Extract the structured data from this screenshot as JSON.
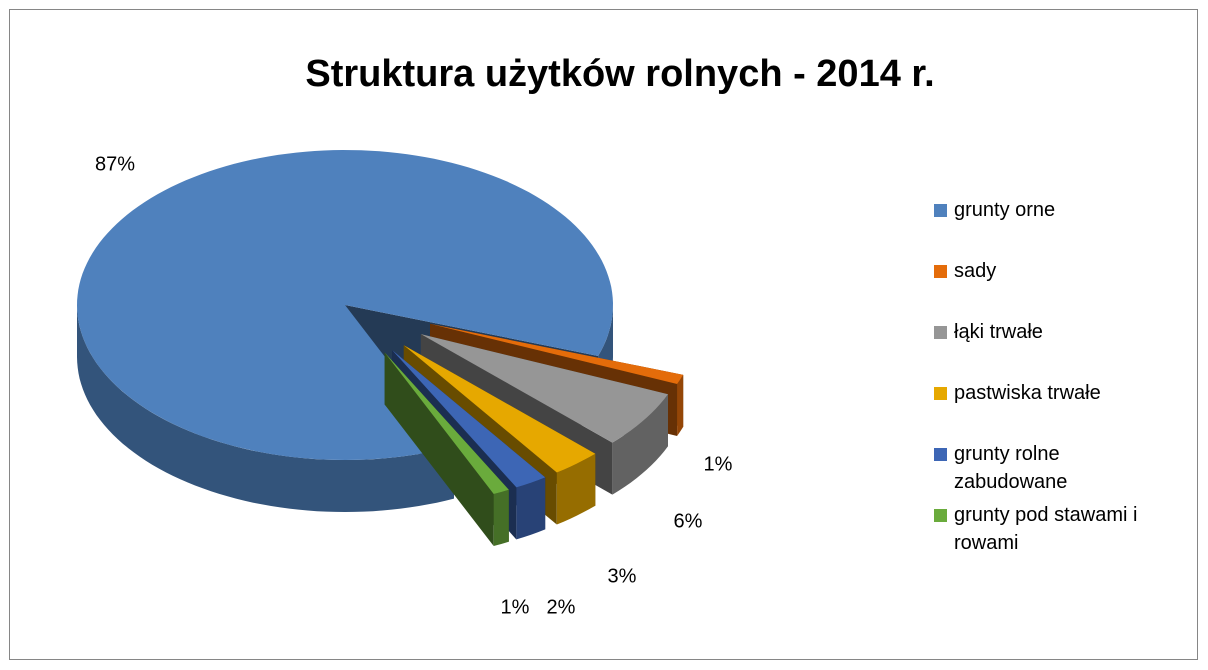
{
  "chart_data": {
    "type": "pie3d",
    "title": "Struktura użytków rolnych - 2014 r.",
    "categories": [
      "grunty orne",
      "sady",
      "łąki trwałe",
      "pastwiska trwałe",
      "grunty rolne zabudowane",
      "grunty pod stawami i rowami"
    ],
    "values": [
      87,
      1,
      6,
      3,
      2,
      1
    ],
    "value_labels": [
      "87%",
      "1%",
      "6%",
      "3%",
      "2%",
      "1%"
    ],
    "colors": [
      "#4f81bd",
      "#e46c0a",
      "#969696",
      "#e6a800",
      "#3d66b5",
      "#6aab3c"
    ],
    "legend": "right"
  }
}
